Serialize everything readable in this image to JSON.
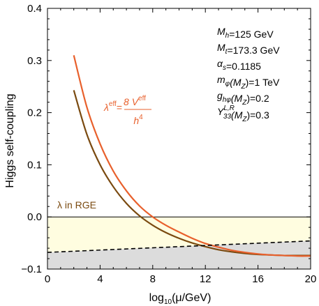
{
  "chart_data": {
    "type": "line",
    "xlabel_parts": [
      "log",
      "10",
      "(μ/GeV)"
    ],
    "ylabel": "Higgs self-coupling",
    "xlim": [
      0,
      20
    ],
    "ylim": [
      -0.1,
      0.4
    ],
    "x_ticks": [
      0,
      4,
      8,
      12,
      16,
      20
    ],
    "y_ticks": [
      -0.1,
      0.0,
      0.1,
      0.2,
      0.3,
      0.4
    ],
    "x_tick_labels": [
      "0",
      "4",
      "8",
      "12",
      "16",
      "20"
    ],
    "y_tick_labels": [
      "−0.1",
      "0.0",
      "0.1",
      "0.2",
      "0.3",
      "0.4"
    ],
    "colors": {
      "effective": "#e8602c",
      "rge": "#7a4a10",
      "stable_region": "#fffde0",
      "unstable_region": "#dcdcdc",
      "boundary": "#000000"
    },
    "series": [
      {
        "key": "lambda_eff",
        "x": [
          2,
          3,
          4,
          5,
          6,
          7,
          8,
          9,
          10,
          11,
          12,
          13,
          14,
          15,
          16,
          17,
          18,
          19,
          20
        ],
        "y": [
          0.31,
          0.21,
          0.14,
          0.088,
          0.05,
          0.021,
          0.0,
          -0.016,
          -0.029,
          -0.041,
          -0.051,
          -0.058,
          -0.064,
          -0.068,
          -0.071,
          -0.073,
          -0.074,
          -0.075,
          -0.075
        ]
      },
      {
        "key": "lambda_rge",
        "x": [
          2,
          3,
          4,
          5,
          6,
          7,
          8,
          9,
          10,
          11,
          12,
          13,
          14,
          15,
          16,
          17,
          18,
          19,
          20
        ],
        "y": [
          0.243,
          0.158,
          0.1,
          0.058,
          0.026,
          0.002,
          -0.016,
          -0.03,
          -0.041,
          -0.05,
          -0.057,
          -0.063,
          -0.067,
          -0.07,
          -0.072,
          -0.073,
          -0.074,
          -0.074,
          -0.074
        ]
      }
    ],
    "boundary": {
      "style": "dashed",
      "x": [
        0,
        20
      ],
      "y": [
        -0.068,
        -0.046
      ]
    },
    "annotations": {
      "lambda_eff_label": {
        "symbol": "λ",
        "sup": "eff",
        "eq": "=",
        "numerator": "8 V",
        "numerator_sup": "eff",
        "denominator": "h",
        "denominator_sup": "4"
      },
      "lambda_rge_label": "λ in RGE"
    },
    "parameters": [
      {
        "sym": "M",
        "sub": "h",
        "sup": "",
        "arg": "",
        "value": "=125 GeV"
      },
      {
        "sym": "M",
        "sub": "t",
        "sup": "",
        "arg": "",
        "value": "=173.3 GeV"
      },
      {
        "sym": "α",
        "sub": "s",
        "sup": "",
        "arg": "",
        "value": "=0.1185"
      },
      {
        "sym": "m",
        "sub": "φ",
        "sup": "",
        "arg": "(M",
        "arg_sub": "Z",
        "value": ")=1 TeV"
      },
      {
        "sym": "g",
        "sub": "hφ",
        "sup": "",
        "arg": "(M",
        "arg_sub": "Z",
        "value": ")=0.2"
      },
      {
        "sym": "Y",
        "sub": "33",
        "sup": "L,R",
        "arg": "(M",
        "arg_sub": "Z",
        "value": ")=0.3"
      }
    ]
  }
}
